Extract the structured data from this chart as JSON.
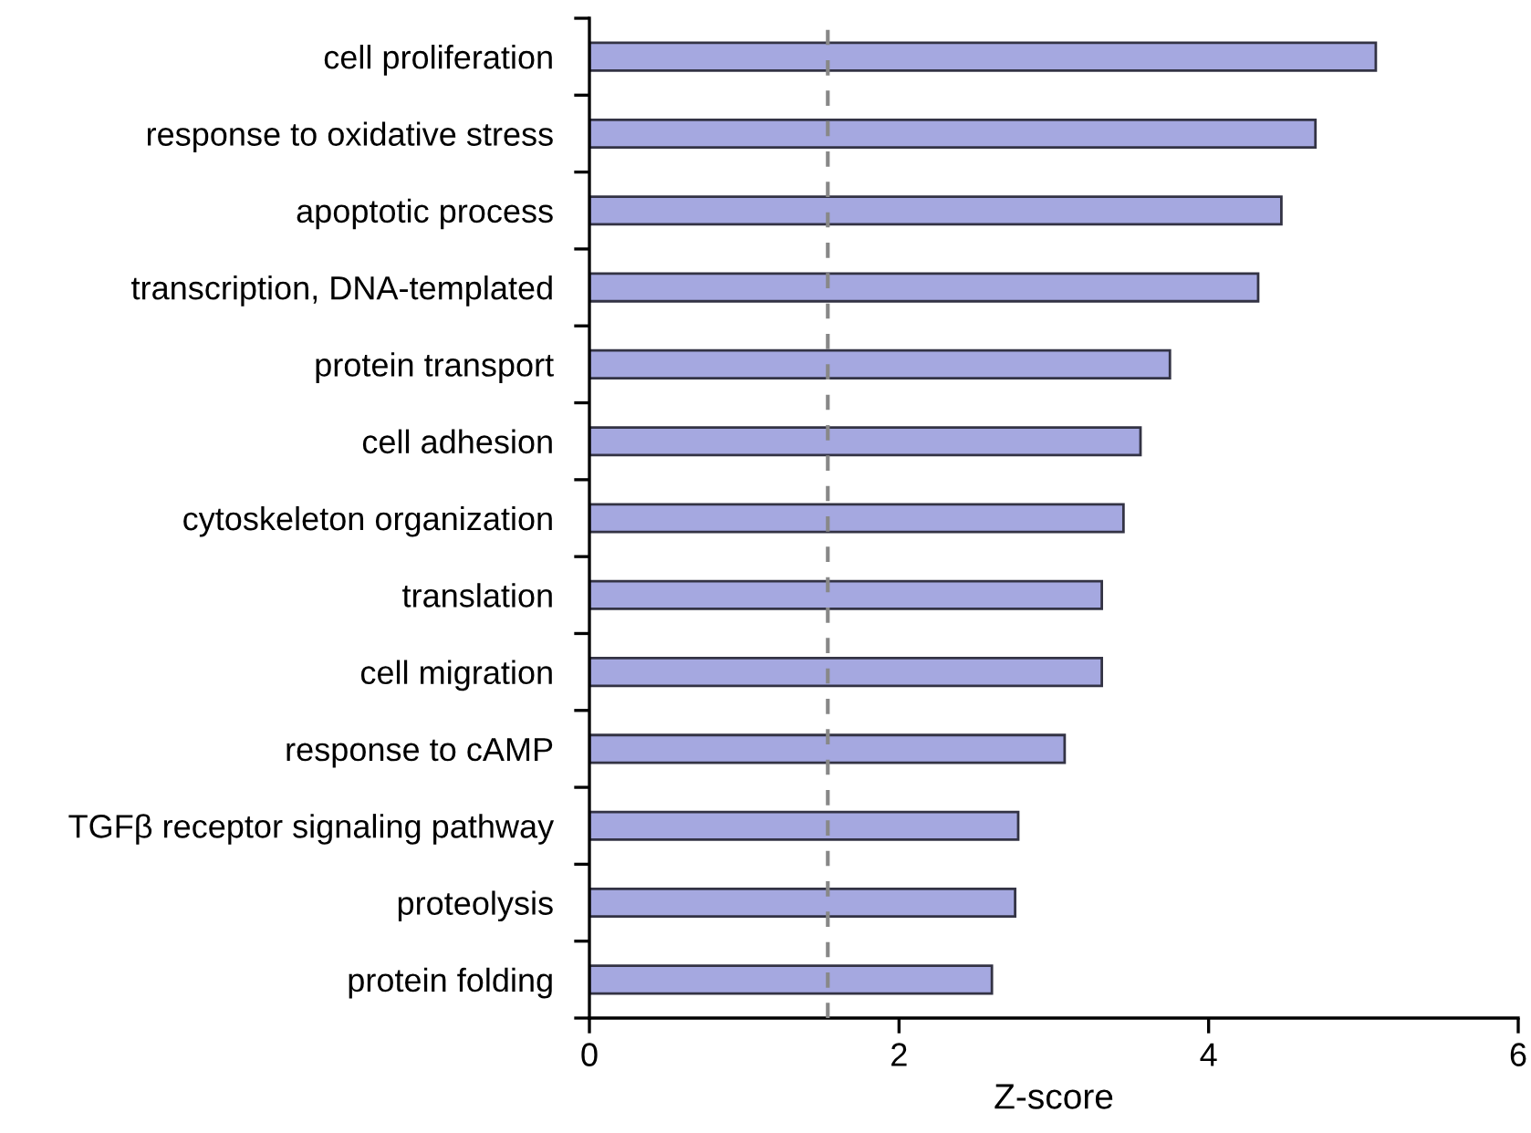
{
  "chart_data": {
    "type": "bar",
    "orientation": "horizontal",
    "xlabel": "Z-score",
    "categories": [
      "cell proliferation",
      "response to oxidative stress",
      "apoptotic process",
      "transcription, DNA-templated",
      "protein transport",
      "cell adhesion",
      "cytoskeleton organization",
      "translation",
      "cell migration",
      "response to cAMP",
      "TGFβ receptor signaling pathway",
      "proteolysis",
      "protein folding"
    ],
    "values": [
      5.08,
      4.69,
      4.47,
      4.32,
      3.75,
      3.56,
      3.45,
      3.31,
      3.31,
      3.07,
      2.77,
      2.75,
      2.6
    ],
    "color": "#a5a8e0",
    "xlim": [
      0,
      6
    ],
    "xticks": [
      0,
      2,
      4,
      6
    ],
    "grid": false,
    "legend": false,
    "ref_lines": [
      {
        "axis": "x",
        "value": 1.54,
        "color": "#888888",
        "line_style": "dashed"
      }
    ]
  }
}
